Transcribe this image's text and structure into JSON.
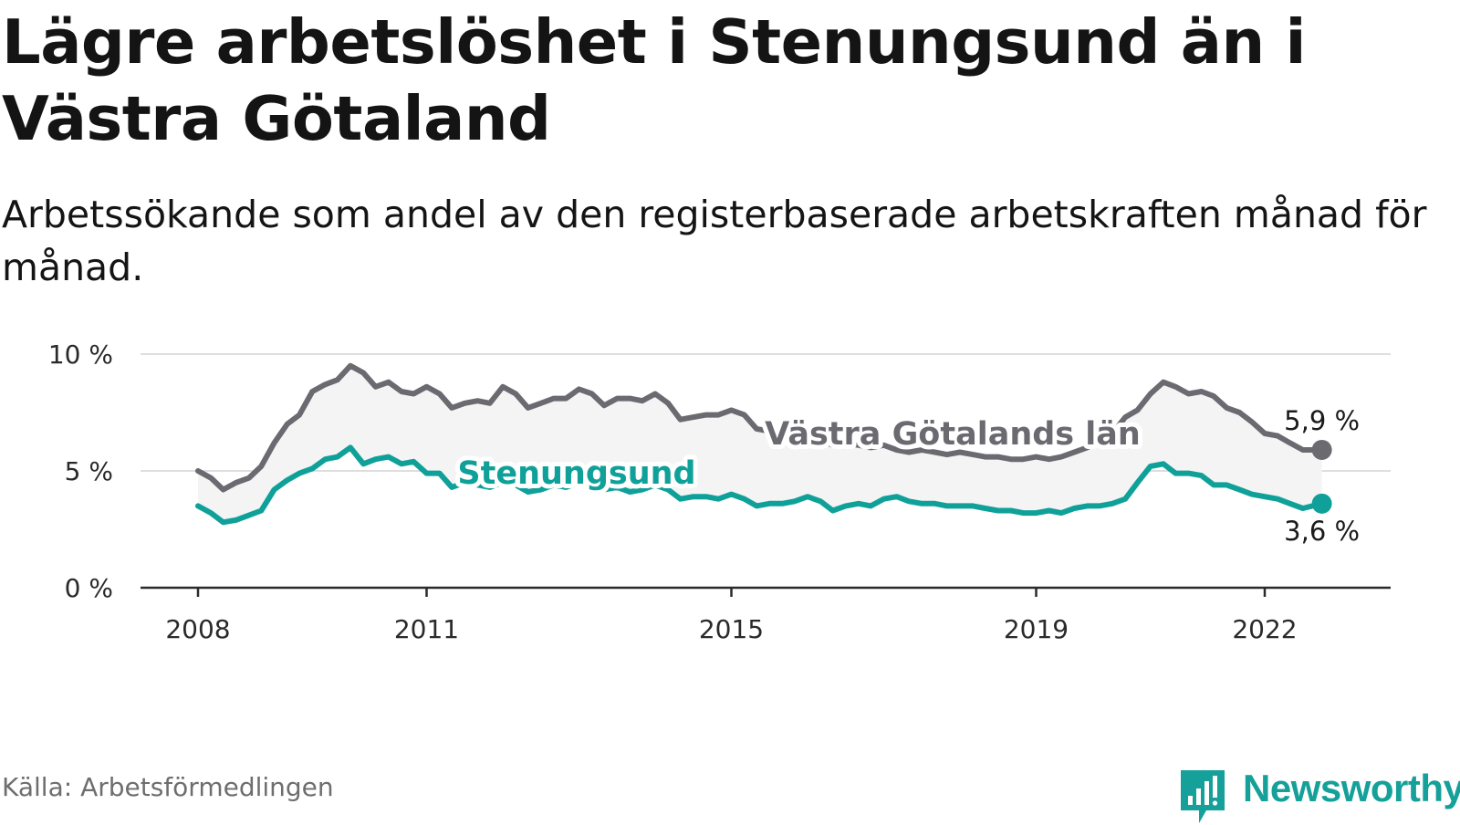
{
  "title": "Lägre arbetslöshet i Stenungsund än i Västra Götaland",
  "subtitle": "Arbetssökande som andel av den registerbaserade arbetskraften månad för månad.",
  "source": "Källa: Arbetsförmedlingen",
  "logo_text": "Newsworthy",
  "colors": {
    "brand": "#15a09a",
    "stenungsund": "#0fa199",
    "vastra_gotaland": "#6b6a70",
    "band": "#f4f4f4",
    "grid": "#dedede",
    "axis": "#2a2a2a"
  },
  "chart_data": {
    "type": "line",
    "title": "Lägre arbetslöshet i Stenungsund än i Västra Götaland",
    "xlabel": "",
    "ylabel": "",
    "x_range": [
      2008,
      2022.75
    ],
    "ylim": [
      0,
      10
    ],
    "grid": true,
    "x_ticks": [
      {
        "value": 2008,
        "label": "2008"
      },
      {
        "value": 2011,
        "label": "2011"
      },
      {
        "value": 2015,
        "label": "2015"
      },
      {
        "value": 2019,
        "label": "2019"
      },
      {
        "value": 2022,
        "label": "2022"
      }
    ],
    "y_ticks": [
      {
        "value": 0,
        "label": "0 %"
      },
      {
        "value": 5,
        "label": "5 %"
      },
      {
        "value": 10,
        "label": "10 %"
      }
    ],
    "series": [
      {
        "name": "Västra Götalands län",
        "label": "Västra Götalands län",
        "color": "#6b6a70",
        "end_label": "5,9 %",
        "points": [
          [
            2008.0,
            5.0
          ],
          [
            2008.17,
            4.7
          ],
          [
            2008.33,
            4.2
          ],
          [
            2008.5,
            4.5
          ],
          [
            2008.67,
            4.7
          ],
          [
            2008.83,
            5.2
          ],
          [
            2009.0,
            6.2
          ],
          [
            2009.17,
            7.0
          ],
          [
            2009.33,
            7.4
          ],
          [
            2009.5,
            8.4
          ],
          [
            2009.67,
            8.7
          ],
          [
            2009.83,
            8.9
          ],
          [
            2010.0,
            9.5
          ],
          [
            2010.17,
            9.2
          ],
          [
            2010.33,
            8.6
          ],
          [
            2010.5,
            8.8
          ],
          [
            2010.67,
            8.4
          ],
          [
            2010.83,
            8.3
          ],
          [
            2011.0,
            8.6
          ],
          [
            2011.17,
            8.3
          ],
          [
            2011.33,
            7.7
          ],
          [
            2011.5,
            7.9
          ],
          [
            2011.67,
            8.0
          ],
          [
            2011.83,
            7.9
          ],
          [
            2012.0,
            8.6
          ],
          [
            2012.17,
            8.3
          ],
          [
            2012.33,
            7.7
          ],
          [
            2012.5,
            7.9
          ],
          [
            2012.67,
            8.1
          ],
          [
            2012.83,
            8.1
          ],
          [
            2013.0,
            8.5
          ],
          [
            2013.17,
            8.3
          ],
          [
            2013.33,
            7.8
          ],
          [
            2013.5,
            8.1
          ],
          [
            2013.67,
            8.1
          ],
          [
            2013.83,
            8.0
          ],
          [
            2014.0,
            8.3
          ],
          [
            2014.17,
            7.9
          ],
          [
            2014.33,
            7.2
          ],
          [
            2014.5,
            7.3
          ],
          [
            2014.67,
            7.4
          ],
          [
            2014.83,
            7.4
          ],
          [
            2015.0,
            7.6
          ],
          [
            2015.17,
            7.4
          ],
          [
            2015.33,
            6.8
          ],
          [
            2015.5,
            6.7
          ],
          [
            2015.67,
            6.6
          ],
          [
            2015.83,
            6.4
          ],
          [
            2016.0,
            6.5
          ],
          [
            2016.17,
            6.3
          ],
          [
            2016.33,
            6.1
          ],
          [
            2016.5,
            6.2
          ],
          [
            2016.67,
            6.1
          ],
          [
            2016.83,
            6.0
          ],
          [
            2017.0,
            6.1
          ],
          [
            2017.17,
            5.9
          ],
          [
            2017.33,
            5.8
          ],
          [
            2017.5,
            5.9
          ],
          [
            2017.67,
            5.8
          ],
          [
            2017.83,
            5.7
          ],
          [
            2018.0,
            5.8
          ],
          [
            2018.17,
            5.7
          ],
          [
            2018.33,
            5.6
          ],
          [
            2018.5,
            5.6
          ],
          [
            2018.67,
            5.5
          ],
          [
            2018.83,
            5.5
          ],
          [
            2019.0,
            5.6
          ],
          [
            2019.17,
            5.5
          ],
          [
            2019.33,
            5.6
          ],
          [
            2019.5,
            5.8
          ],
          [
            2019.67,
            6.0
          ],
          [
            2019.83,
            6.3
          ],
          [
            2020.0,
            6.6
          ],
          [
            2020.17,
            7.3
          ],
          [
            2020.33,
            7.6
          ],
          [
            2020.5,
            8.3
          ],
          [
            2020.67,
            8.8
          ],
          [
            2020.83,
            8.6
          ],
          [
            2021.0,
            8.3
          ],
          [
            2021.17,
            8.4
          ],
          [
            2021.33,
            8.2
          ],
          [
            2021.5,
            7.7
          ],
          [
            2021.67,
            7.5
          ],
          [
            2021.83,
            7.1
          ],
          [
            2022.0,
            6.6
          ],
          [
            2022.17,
            6.5
          ],
          [
            2022.33,
            6.2
          ],
          [
            2022.5,
            5.9
          ],
          [
            2022.75,
            5.9
          ]
        ]
      },
      {
        "name": "Stenungsund",
        "label": "Stenungsund",
        "color": "#0fa199",
        "end_label": "3,6 %",
        "points": [
          [
            2008.0,
            3.5
          ],
          [
            2008.17,
            3.2
          ],
          [
            2008.33,
            2.8
          ],
          [
            2008.5,
            2.9
          ],
          [
            2008.67,
            3.1
          ],
          [
            2008.83,
            3.3
          ],
          [
            2009.0,
            4.2
          ],
          [
            2009.17,
            4.6
          ],
          [
            2009.33,
            4.9
          ],
          [
            2009.5,
            5.1
          ],
          [
            2009.67,
            5.5
          ],
          [
            2009.83,
            5.6
          ],
          [
            2010.0,
            6.0
          ],
          [
            2010.17,
            5.3
          ],
          [
            2010.33,
            5.5
          ],
          [
            2010.5,
            5.6
          ],
          [
            2010.67,
            5.3
          ],
          [
            2010.83,
            5.4
          ],
          [
            2011.0,
            4.9
          ],
          [
            2011.17,
            4.9
          ],
          [
            2011.33,
            4.3
          ],
          [
            2011.5,
            4.5
          ],
          [
            2011.67,
            4.4
          ],
          [
            2011.83,
            4.3
          ],
          [
            2012.0,
            4.5
          ],
          [
            2012.17,
            4.4
          ],
          [
            2012.33,
            4.1
          ],
          [
            2012.5,
            4.2
          ],
          [
            2012.67,
            4.4
          ],
          [
            2012.83,
            4.3
          ],
          [
            2013.0,
            4.5
          ],
          [
            2013.17,
            4.3
          ],
          [
            2013.33,
            4.2
          ],
          [
            2013.5,
            4.3
          ],
          [
            2013.67,
            4.1
          ],
          [
            2013.83,
            4.2
          ],
          [
            2014.0,
            4.4
          ],
          [
            2014.17,
            4.2
          ],
          [
            2014.33,
            3.8
          ],
          [
            2014.5,
            3.9
          ],
          [
            2014.67,
            3.9
          ],
          [
            2014.83,
            3.8
          ],
          [
            2015.0,
            4.0
          ],
          [
            2015.17,
            3.8
          ],
          [
            2015.33,
            3.5
          ],
          [
            2015.5,
            3.6
          ],
          [
            2015.67,
            3.6
          ],
          [
            2015.83,
            3.7
          ],
          [
            2016.0,
            3.9
          ],
          [
            2016.17,
            3.7
          ],
          [
            2016.33,
            3.3
          ],
          [
            2016.5,
            3.5
          ],
          [
            2016.67,
            3.6
          ],
          [
            2016.83,
            3.5
          ],
          [
            2017.0,
            3.8
          ],
          [
            2017.17,
            3.9
          ],
          [
            2017.33,
            3.7
          ],
          [
            2017.5,
            3.6
          ],
          [
            2017.67,
            3.6
          ],
          [
            2017.83,
            3.5
          ],
          [
            2018.0,
            3.5
          ],
          [
            2018.17,
            3.5
          ],
          [
            2018.33,
            3.4
          ],
          [
            2018.5,
            3.3
          ],
          [
            2018.67,
            3.3
          ],
          [
            2018.83,
            3.2
          ],
          [
            2019.0,
            3.2
          ],
          [
            2019.17,
            3.3
          ],
          [
            2019.33,
            3.2
          ],
          [
            2019.5,
            3.4
          ],
          [
            2019.67,
            3.5
          ],
          [
            2019.83,
            3.5
          ],
          [
            2020.0,
            3.6
          ],
          [
            2020.17,
            3.8
          ],
          [
            2020.33,
            4.5
          ],
          [
            2020.5,
            5.2
          ],
          [
            2020.67,
            5.3
          ],
          [
            2020.83,
            4.9
          ],
          [
            2021.0,
            4.9
          ],
          [
            2021.17,
            4.8
          ],
          [
            2021.33,
            4.4
          ],
          [
            2021.5,
            4.4
          ],
          [
            2021.67,
            4.2
          ],
          [
            2021.83,
            4.0
          ],
          [
            2022.0,
            3.9
          ],
          [
            2022.17,
            3.8
          ],
          [
            2022.33,
            3.6
          ],
          [
            2022.5,
            3.4
          ],
          [
            2022.75,
            3.6
          ]
        ]
      }
    ]
  }
}
